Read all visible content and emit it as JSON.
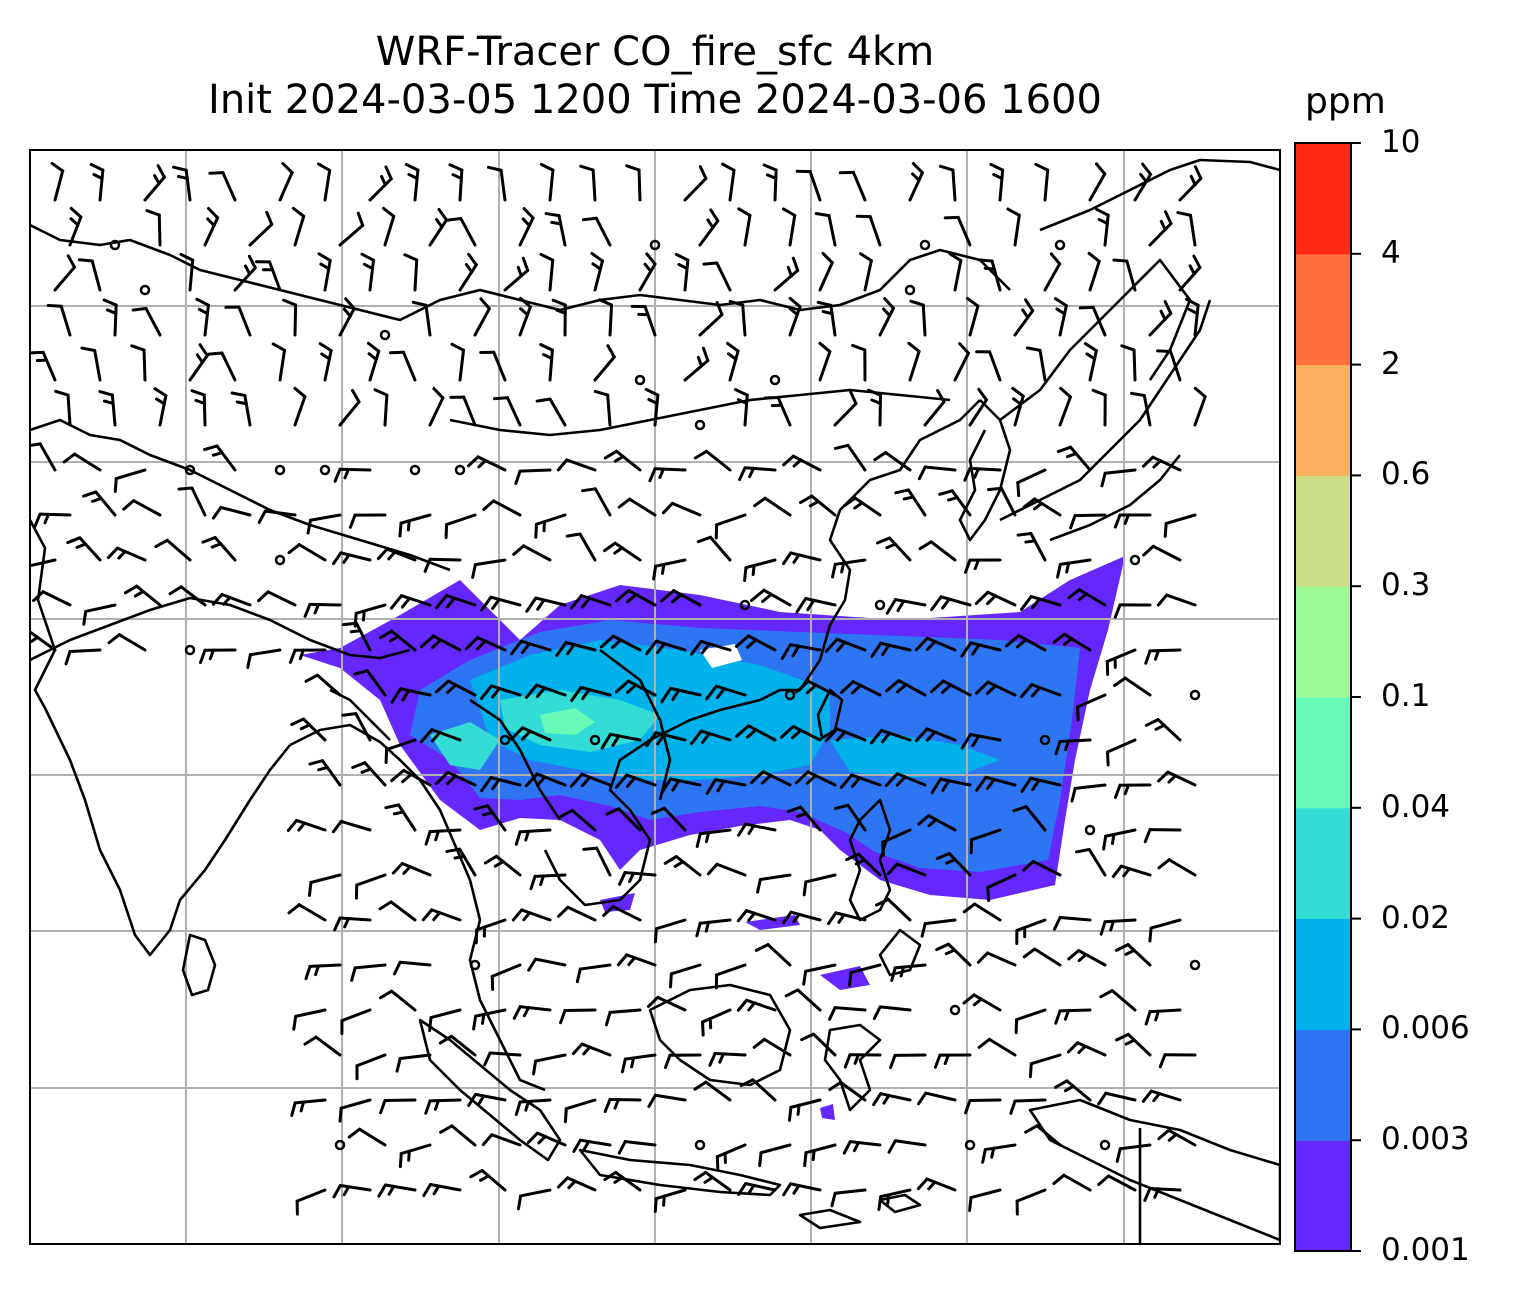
{
  "title": {
    "line1": "WRF-Tracer CO_fire_sfc 4km",
    "line2": "Init 2024-03-05 1200 Time 2024-03-06 1600"
  },
  "colorbar": {
    "unit": "ppm",
    "levels": [
      "0.001",
      "0.003",
      "0.006",
      "0.02",
      "0.04",
      "0.1",
      "0.3",
      "0.6",
      "2",
      "4",
      "10"
    ],
    "colors": [
      "#6428fc",
      "#2e75f4",
      "#00b1ec",
      "#33dcd4",
      "#68fab8",
      "#99fa97",
      "#cddf86",
      "#fbb05f",
      "#ff6f3b",
      "#ff2b15"
    ]
  },
  "map": {
    "layers": [
      "coastlines",
      "gridlines",
      "wind barbs",
      "CO_fire_sfc concentration"
    ],
    "plume_colors": {
      "low": "#6428fc",
      "mid": "#2e75f4",
      "higher": "#00b1ec",
      "high": "#33dcd4",
      "peak": "#68fab8"
    }
  }
}
